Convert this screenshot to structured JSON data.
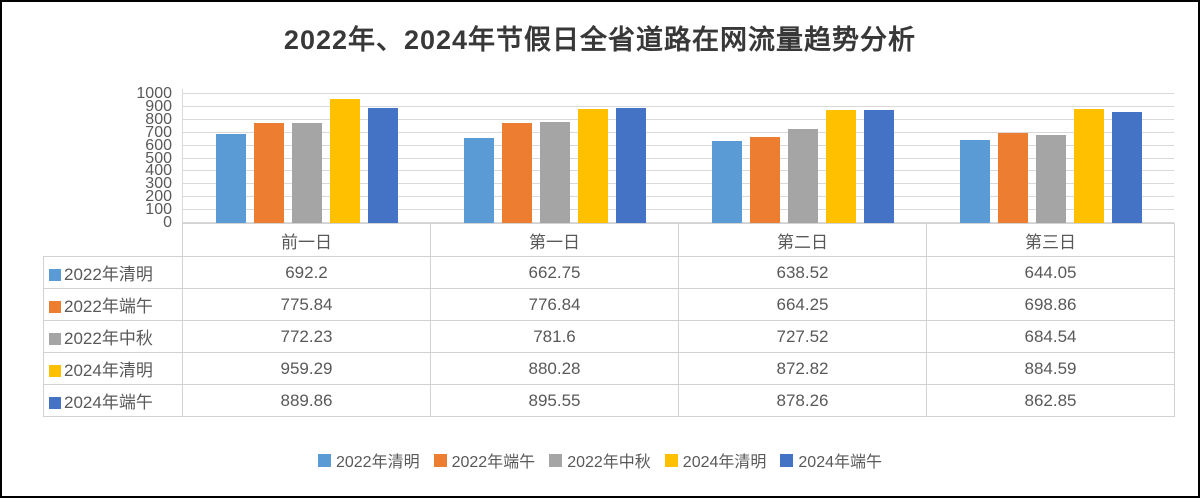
{
  "chart_data": {
    "type": "bar",
    "title": "2022年、2024年节假日全省道路在网流量趋势分析",
    "categories": [
      "前一日",
      "第一日",
      "第二日",
      "第三日"
    ],
    "series": [
      {
        "name": "2022年清明",
        "color": "#5B9BD5",
        "values": [
          692.2,
          662.75,
          638.52,
          644.05
        ]
      },
      {
        "name": "2022年端午",
        "color": "#ED7D31",
        "values": [
          775.84,
          776.84,
          664.25,
          698.86
        ]
      },
      {
        "name": "2022年中秋",
        "color": "#A5A5A5",
        "values": [
          772.23,
          781.6,
          727.52,
          684.54
        ]
      },
      {
        "name": "2024年清明",
        "color": "#FFC000",
        "values": [
          959.29,
          880.28,
          872.82,
          884.59
        ]
      },
      {
        "name": "2024年端午",
        "color": "#4472C4",
        "values": [
          889.86,
          895.55,
          878.26,
          862.85
        ]
      }
    ],
    "ylim": [
      0,
      1000
    ],
    "ytick_step": 100,
    "grid": "horizontal",
    "legend_position": "bottom",
    "data_table_shown": true,
    "gridline_color": "#d9d9d9",
    "text_color": "#595959",
    "title_color": "#383838"
  }
}
